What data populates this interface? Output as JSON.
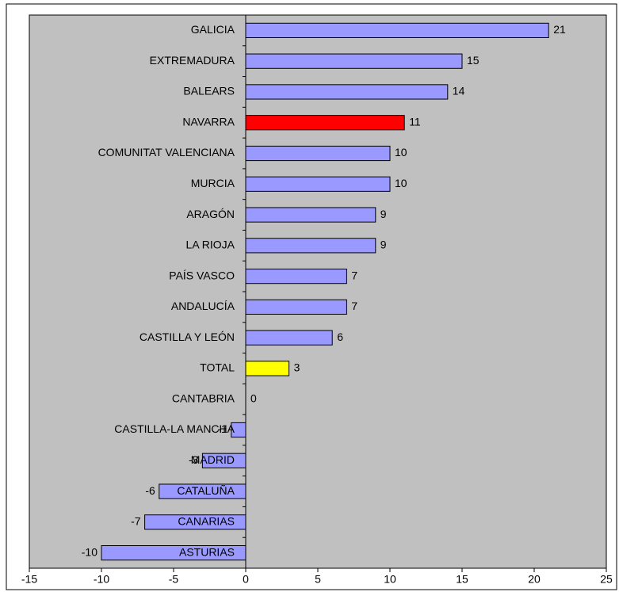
{
  "chart_data": {
    "type": "hbar",
    "categories": [
      "GALICIA",
      "EXTREMADURA",
      "BALEARS",
      "NAVARRA",
      "COMUNITAT VALENCIANA",
      "MURCIA",
      "ARAGÓN",
      "LA RIOJA",
      "PAÍS VASCO",
      "ANDALUCÍA",
      "CASTILLA Y LEÓN",
      "TOTAL",
      "CANTABRIA",
      "CASTILLA-LA MANCHA",
      "MADRID",
      "CATALUÑA",
      "CANARIAS",
      "ASTURIAS"
    ],
    "values": [
      21,
      15,
      14,
      11,
      10,
      10,
      9,
      9,
      7,
      7,
      6,
      3,
      0,
      -1,
      -3,
      -6,
      -7,
      -10
    ],
    "colors": [
      "#9999ff",
      "#9999ff",
      "#9999ff",
      "#ff0000",
      "#9999ff",
      "#9999ff",
      "#9999ff",
      "#9999ff",
      "#9999ff",
      "#9999ff",
      "#9999ff",
      "#ffff00",
      "#9999ff",
      "#9999ff",
      "#9999ff",
      "#9999ff",
      "#9999ff",
      "#9999ff"
    ],
    "xlim": [
      -15,
      25
    ],
    "xticks": [
      -15,
      -10,
      -5,
      0,
      5,
      10,
      15,
      20,
      25
    ],
    "background": "#c0c0c0",
    "grid": false
  }
}
